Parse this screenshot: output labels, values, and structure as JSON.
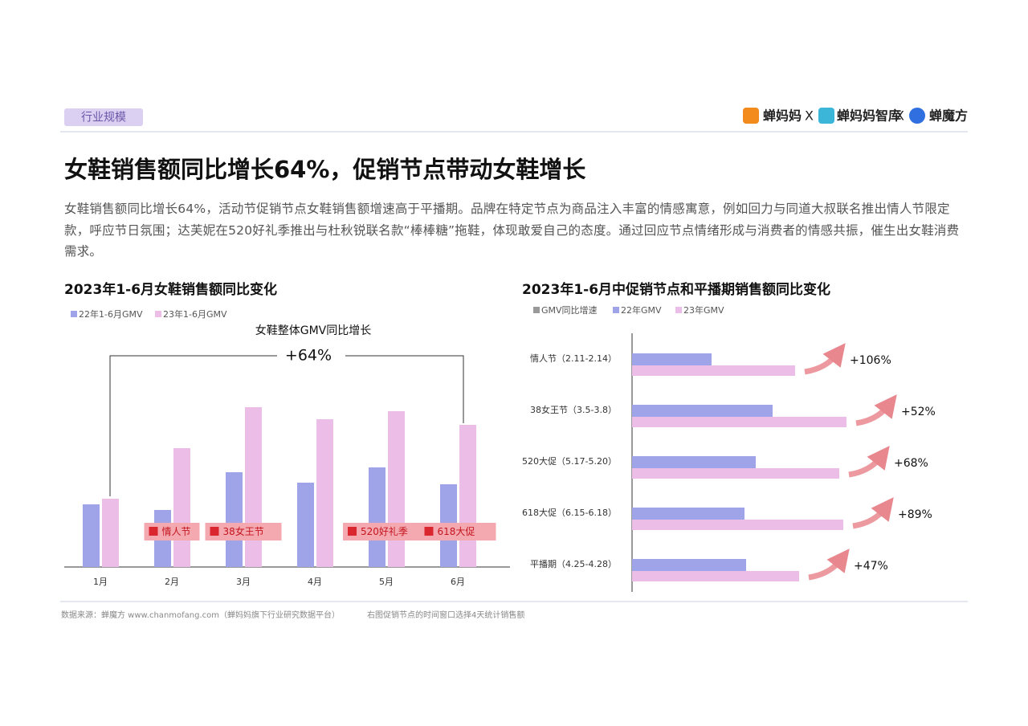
{
  "header": {
    "tag": "行业规模",
    "logos": [
      "蝉妈妈",
      "蝉妈妈智库",
      "蝉魔方"
    ],
    "separator": "X"
  },
  "title": "女鞋销售额同比增长64%，促销节点带动女鞋增长",
  "paragraph": "女鞋销售额同比增长64%，活动节促销节点女鞋销售额增速高于平播期。品牌在特定节点为商品注入丰富的情感寓意，例如回力与同道大叔联名推出情人节限定款，呼应节日氛围；达芙妮在520好礼季推出与杜秋锐联名款“棒棒糖”拖鞋，体现敢爱自己的态度。通过回应节点情绪形成与消费者的情感共振，催生出女鞋消费需求。",
  "chart_data": [
    {
      "type": "bar",
      "title": "2023年1-6月女鞋销售额同比变化",
      "categories": [
        "1月",
        "2月",
        "3月",
        "4月",
        "5月",
        "6月"
      ],
      "series": [
        {
          "name": "22年1-6月GMV",
          "color": "#9fa3e8",
          "values": [
            78,
            71,
            118,
            105,
            124,
            103
          ]
        },
        {
          "name": "23年1-6月GMV",
          "color": "#ecbde6",
          "values": [
            85,
            148,
            199,
            184,
            194,
            177
          ]
        }
      ],
      "ylim": [
        0,
        220
      ],
      "annotation": {
        "title": "女鞋整体GMV同比增长",
        "value": 64,
        "label": "+64%"
      },
      "events": [
        null,
        "情人节",
        "38女王节",
        null,
        "520好礼季",
        "618大促"
      ]
    },
    {
      "type": "barh",
      "title": "2023年1-6月中促销节点和平播期销售额同比变化",
      "categories": [
        "情人节（2.11-2.14）",
        "38女王节（3.5-3.8）",
        "520大促（5.17-5.20）",
        "618大促（6.15-6.18）",
        "平播期（4.25-4.28）"
      ],
      "series": [
        {
          "name": "GMV同比增速",
          "color": "#999999",
          "values": [
            106,
            52,
            68,
            89,
            47
          ],
          "value_labels": [
            "+106%",
            "+52%",
            "+68%",
            "+89%",
            "+47%"
          ]
        },
        {
          "name": "22年GMV",
          "color": "#9fa3e8",
          "values": [
            99,
            175,
            154,
            140,
            142
          ]
        },
        {
          "name": "23年GMV",
          "color": "#ecbde6",
          "values": [
            203,
            267,
            258,
            263,
            208
          ]
        }
      ],
      "xlim": [
        0,
        300
      ]
    }
  ],
  "footer": {
    "source": "数据来源：蝉魔方  www.chanmofang.com（蝉妈妈旗下行业研究数据平台）",
    "note": "右图促销节点的时间窗口选择4天统计销售额"
  }
}
